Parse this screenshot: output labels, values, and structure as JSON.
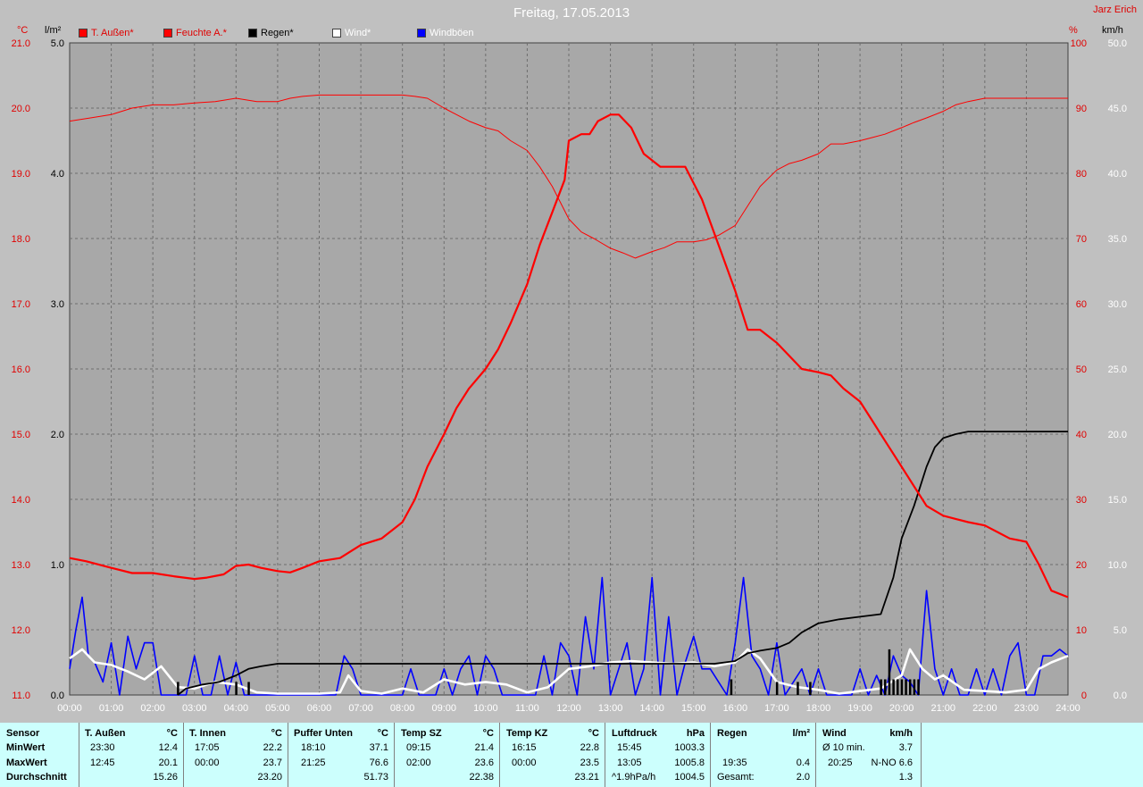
{
  "title": "Freitag, 17.05.2013",
  "author": "Jarz Erich",
  "units": {
    "left_temp": "°C",
    "left_rain": "l/m²",
    "right_pct": "%",
    "right_kmh": "km/h"
  },
  "legend": [
    {
      "label": "T. Außen*",
      "color": "#ff0000"
    },
    {
      "label": "Feuchte A.*",
      "color": "#ff0000"
    },
    {
      "label": "Regen*",
      "color": "#000000"
    },
    {
      "label": "Wind*",
      "color": "#ffffff"
    },
    {
      "label": "Windböen",
      "color": "#0000ff"
    }
  ],
  "chart_data": {
    "type": "line",
    "title": "Freitag, 17.05.2013",
    "x_ticks": [
      "00:00",
      "01:00",
      "02:00",
      "03:00",
      "04:00",
      "05:00",
      "06:00",
      "07:00",
      "08:00",
      "09:00",
      "10:00",
      "11:00",
      "12:00",
      "13:00",
      "14:00",
      "15:00",
      "16:00",
      "17:00",
      "18:00",
      "19:00",
      "20:00",
      "21:00",
      "22:00",
      "23:00",
      "24:00"
    ],
    "axes": {
      "temp": {
        "unit": "°C",
        "range": [
          11.0,
          21.0
        ],
        "ticks": [
          "11.0",
          "12.0",
          "13.0",
          "14.0",
          "15.0",
          "16.0",
          "17.0",
          "18.0",
          "19.0",
          "20.0",
          "21.0"
        ],
        "color": "#e00000"
      },
      "rain": {
        "unit": "l/m²",
        "range": [
          0.0,
          5.0
        ],
        "ticks": [
          "0.0",
          "1.0",
          "2.0",
          "3.0",
          "4.0",
          "5.0"
        ],
        "color": "#000000"
      },
      "humidity": {
        "unit": "%",
        "range": [
          0,
          100
        ],
        "ticks": [
          "0",
          "10",
          "20",
          "30",
          "40",
          "50",
          "60",
          "70",
          "80",
          "90",
          "100"
        ],
        "color": "#e00000"
      },
      "wind": {
        "unit": "km/h",
        "range": [
          0.0,
          50.0
        ],
        "ticks": [
          "0.0",
          "5.0",
          "10.0",
          "15.0",
          "20.0",
          "25.0",
          "30.0",
          "35.0",
          "40.0",
          "45.0",
          "50.0"
        ],
        "color": "#ffffff"
      }
    },
    "grid": true,
    "series": [
      {
        "name": "T. Außen*",
        "axis": "temp",
        "color": "#ff0000",
        "x": [
          0,
          0.4,
          1,
          1.5,
          2,
          2.5,
          3,
          3.3,
          3.7,
          4,
          4.3,
          4.6,
          5,
          5.3,
          5.6,
          6,
          6.5,
          7,
          7.5,
          8,
          8.3,
          8.6,
          9,
          9.3,
          9.6,
          10,
          10.3,
          10.6,
          11,
          11.3,
          11.6,
          11.9,
          12,
          12.3,
          12.5,
          12.7,
          13,
          13.2,
          13.5,
          13.8,
          14.2,
          14.5,
          14.8,
          15.2,
          15.6,
          16,
          16.3,
          16.6,
          17,
          17.3,
          17.6,
          18,
          18.3,
          18.6,
          19,
          19.3,
          19.6,
          20,
          20.3,
          20.6,
          21,
          21.3,
          21.6,
          22,
          22.3,
          22.6,
          23,
          23.3,
          23.6,
          24
        ],
        "values": [
          13.1,
          13.05,
          12.95,
          12.87,
          12.87,
          12.82,
          12.78,
          12.8,
          12.85,
          12.98,
          13.0,
          12.95,
          12.9,
          12.88,
          12.95,
          13.05,
          13.1,
          13.3,
          13.4,
          13.65,
          14.0,
          14.5,
          15.0,
          15.4,
          15.7,
          16.0,
          16.3,
          16.7,
          17.3,
          17.9,
          18.4,
          18.9,
          19.5,
          19.6,
          19.6,
          19.8,
          19.9,
          19.9,
          19.7,
          19.3,
          19.1,
          19.1,
          19.1,
          18.6,
          17.9,
          17.2,
          16.6,
          16.6,
          16.4,
          16.2,
          16.0,
          15.95,
          15.9,
          15.7,
          15.5,
          15.2,
          14.9,
          14.5,
          14.2,
          13.9,
          13.75,
          13.7,
          13.65,
          13.6,
          13.5,
          13.4,
          13.35,
          13.0,
          12.6,
          12.5
        ]
      },
      {
        "name": "Feuchte A.*",
        "axis": "humidity",
        "color": "#ff0000",
        "x": [
          0,
          0.5,
          1,
          1.5,
          2,
          2.5,
          3,
          3.5,
          4,
          4.5,
          5,
          5.3,
          5.6,
          6,
          6.5,
          7,
          7.5,
          8,
          8.3,
          8.6,
          9,
          9.3,
          9.6,
          10,
          10.3,
          10.6,
          11,
          11.3,
          11.6,
          12,
          12.3,
          12.6,
          13,
          13.3,
          13.6,
          14,
          14.3,
          14.6,
          15,
          15.3,
          15.6,
          16,
          16.3,
          16.6,
          17,
          17.3,
          17.6,
          18,
          18.3,
          18.6,
          19,
          19.3,
          19.6,
          20,
          20.3,
          20.6,
          21,
          21.3,
          21.6,
          22,
          22.3,
          22.6,
          23,
          23.5,
          24
        ],
        "values": [
          88,
          88.5,
          89,
          90,
          90.5,
          90.5,
          90.8,
          91,
          91.5,
          91,
          91,
          91.5,
          91.8,
          92,
          92,
          92,
          92,
          92,
          91.8,
          91.5,
          90,
          89,
          88,
          87,
          86.5,
          85,
          83.5,
          81,
          78,
          73,
          71,
          70,
          68.5,
          67.8,
          67,
          68,
          68.6,
          69.5,
          69.5,
          69.8,
          70.5,
          72,
          75,
          78,
          80.5,
          81.5,
          82,
          83,
          84.5,
          84.5,
          85,
          85.5,
          86,
          87,
          87.8,
          88.5,
          89.5,
          90.5,
          91,
          91.5,
          91.5,
          91.5,
          91.5,
          91.5,
          91.5
        ]
      },
      {
        "name": "Regen*",
        "axis": "rain",
        "color": "#000000",
        "x": [
          2.6,
          2.8,
          3.2,
          3.6,
          4,
          4.3,
          4.6,
          5,
          5.5,
          6,
          8,
          10,
          12,
          14,
          15.5,
          16,
          16.3,
          16.6,
          17,
          17.3,
          17.6,
          18,
          18.5,
          19,
          19.5,
          19.8,
          20,
          20.3,
          20.6,
          20.8,
          21,
          21.3,
          21.6,
          22,
          23,
          24
        ],
        "values": [
          0,
          0.05,
          0.08,
          0.1,
          0.15,
          0.2,
          0.22,
          0.24,
          0.24,
          0.24,
          0.24,
          0.24,
          0.24,
          0.24,
          0.24,
          0.26,
          0.32,
          0.34,
          0.36,
          0.4,
          0.48,
          0.55,
          0.58,
          0.6,
          0.62,
          0.9,
          1.2,
          1.45,
          1.75,
          1.9,
          1.97,
          2.0,
          2.02,
          2.02,
          2.02,
          2.02
        ]
      },
      {
        "name": "Wind*",
        "axis": "wind",
        "color": "#ffffff",
        "x": [
          0,
          0.3,
          0.6,
          1,
          1.4,
          1.8,
          2.2,
          2.6,
          3,
          3.5,
          4,
          4.5,
          5,
          5.5,
          6,
          6.5,
          6.7,
          7,
          7.5,
          8,
          8.5,
          9,
          9.5,
          10,
          10.5,
          11,
          11.5,
          12,
          12.5,
          13,
          13.5,
          14,
          14.5,
          15,
          15.5,
          16,
          16.3,
          16.6,
          17,
          17.5,
          18,
          18.5,
          19,
          19.5,
          20,
          20.2,
          20.5,
          20.8,
          21,
          21.5,
          22,
          22.5,
          23,
          23.3,
          23.6,
          24
        ],
        "values": [
          2.8,
          3.5,
          2.5,
          2.3,
          1.8,
          1.2,
          2.2,
          0.6,
          0.5,
          1.0,
          0.8,
          0.2,
          0.1,
          0.1,
          0.1,
          0.2,
          1.5,
          0.3,
          0.1,
          0.5,
          0.2,
          1.2,
          0.8,
          1.0,
          0.8,
          0.2,
          0.6,
          2.0,
          2.2,
          2.5,
          2.6,
          2.5,
          2.4,
          2.5,
          2.2,
          2.5,
          3.5,
          2.8,
          1.0,
          0.6,
          0.4,
          0.1,
          0.3,
          0.5,
          1.5,
          3.5,
          2.0,
          1.2,
          1.5,
          0.4,
          0.3,
          0.2,
          0.4,
          2.0,
          2.5,
          3.0
        ]
      },
      {
        "name": "Windböen",
        "axis": "wind",
        "color": "#0000ff",
        "x": [
          0,
          0.15,
          0.3,
          0.45,
          0.6,
          0.8,
          1,
          1.2,
          1.4,
          1.6,
          1.8,
          2,
          2.2,
          2.4,
          2.6,
          2.8,
          3,
          3.2,
          3.4,
          3.6,
          3.8,
          4,
          4.2,
          4.4,
          4.6,
          4.8,
          5,
          5.5,
          6,
          6.4,
          6.6,
          6.8,
          7,
          7.2,
          7.4,
          7.6,
          7.8,
          8,
          8.2,
          8.4,
          8.6,
          8.8,
          9,
          9.2,
          9.4,
          9.6,
          9.8,
          10,
          10.2,
          10.4,
          10.6,
          10.8,
          11,
          11.2,
          11.4,
          11.6,
          11.8,
          12,
          12.2,
          12.4,
          12.6,
          12.8,
          13,
          13.2,
          13.4,
          13.6,
          13.8,
          14,
          14.2,
          14.4,
          14.6,
          14.8,
          15,
          15.2,
          15.4,
          15.6,
          15.8,
          16,
          16.2,
          16.4,
          16.6,
          16.8,
          17,
          17.2,
          17.4,
          17.6,
          17.8,
          18,
          18.2,
          18.4,
          18.6,
          18.8,
          19,
          19.2,
          19.4,
          19.6,
          19.8,
          20,
          20.2,
          20.4,
          20.6,
          20.8,
          21,
          21.2,
          21.4,
          21.6,
          21.8,
          22,
          22.2,
          22.4,
          22.6,
          22.8,
          23,
          23.2,
          23.4,
          23.6,
          23.8,
          24
        ],
        "values": [
          2,
          5,
          7.5,
          3,
          2.5,
          1,
          4,
          0,
          4.5,
          2,
          4,
          4,
          0,
          0,
          0,
          0,
          3,
          0,
          0,
          3,
          0,
          2.5,
          0,
          0,
          0,
          0,
          0,
          0,
          0,
          0,
          3,
          2,
          0,
          0,
          0,
          0,
          0,
          0,
          2,
          0,
          0,
          0,
          2,
          0,
          2,
          3,
          0,
          3,
          2,
          0,
          0,
          0,
          0,
          0,
          3,
          0,
          4,
          3,
          0,
          6,
          2,
          9,
          0,
          2,
          4,
          0,
          2,
          9,
          0,
          6,
          0,
          2.5,
          4.5,
          2,
          2,
          1,
          0,
          4,
          9,
          3,
          2,
          0,
          4,
          0,
          1,
          2,
          0,
          2,
          0,
          0,
          0,
          0,
          2,
          0,
          1.5,
          0,
          3,
          1.5,
          1,
          0,
          8,
          2,
          0,
          2,
          0,
          0,
          2,
          0,
          2,
          0,
          3,
          4,
          0,
          0,
          3,
          3,
          3.5,
          3
        ]
      },
      {
        "name": "Regen bars",
        "axis": "rain",
        "color": "#000000",
        "x": [
          2.6,
          4.0,
          4.3,
          15.9,
          17.0,
          17.5,
          17.8,
          19.5,
          19.6,
          19.7,
          19.8,
          19.9,
          20.0,
          20.1,
          20.2,
          20.3,
          20.4
        ],
        "values": [
          0.1,
          0.1,
          0.1,
          0.12,
          0.1,
          0.1,
          0.1,
          0.12,
          0.12,
          0.35,
          0.12,
          0.12,
          0.12,
          0.12,
          0.12,
          0.12,
          0.12
        ]
      }
    ]
  },
  "stats": {
    "columns": [
      {
        "header": "Sensor",
        "unit": "",
        "rows": [
          [
            "MinWert",
            "",
            ""
          ],
          [
            "MaxWert",
            "",
            ""
          ],
          [
            "Durchschnitt",
            "",
            ""
          ]
        ]
      },
      {
        "header": "T. Außen",
        "unit": "°C",
        "rows": [
          [
            "23:30",
            "12.4"
          ],
          [
            "12:45",
            "20.1"
          ],
          [
            "",
            "15.26"
          ]
        ]
      },
      {
        "header": "T. Innen",
        "unit": "°C",
        "rows": [
          [
            "17:05",
            "22.2"
          ],
          [
            "00:00",
            "23.7"
          ],
          [
            "",
            "23.20"
          ]
        ]
      },
      {
        "header": "Puffer Unten",
        "unit": "°C",
        "rows": [
          [
            "18:10",
            "37.1"
          ],
          [
            "21:25",
            "76.6"
          ],
          [
            "",
            "51.73"
          ]
        ]
      },
      {
        "header": "Temp SZ",
        "unit": "°C",
        "rows": [
          [
            "09:15",
            "21.4"
          ],
          [
            "02:00",
            "23.6"
          ],
          [
            "",
            "22.38"
          ]
        ]
      },
      {
        "header": "Temp KZ",
        "unit": "°C",
        "rows": [
          [
            "16:15",
            "22.8"
          ],
          [
            "00:00",
            "23.5"
          ],
          [
            "",
            "23.21"
          ]
        ]
      },
      {
        "header": "Luftdruck",
        "unit": "hPa",
        "rows": [
          [
            "15:45",
            "1003.3"
          ],
          [
            "13:05",
            "1005.8"
          ],
          [
            "^1.9hPa/h",
            "1004.5"
          ]
        ]
      },
      {
        "header": "Regen",
        "unit": "l/m²",
        "rows": [
          [
            "",
            ""
          ],
          [
            "19:35",
            "0.4"
          ],
          [
            "Gesamt:",
            "2.0"
          ]
        ]
      },
      {
        "header": "Wind",
        "unit": "km/h",
        "rows": [
          [
            "Ø 10 min.",
            "3.7"
          ],
          [
            "20:25",
            "N-NO 6.6"
          ],
          [
            "",
            "1.3"
          ]
        ]
      }
    ]
  }
}
